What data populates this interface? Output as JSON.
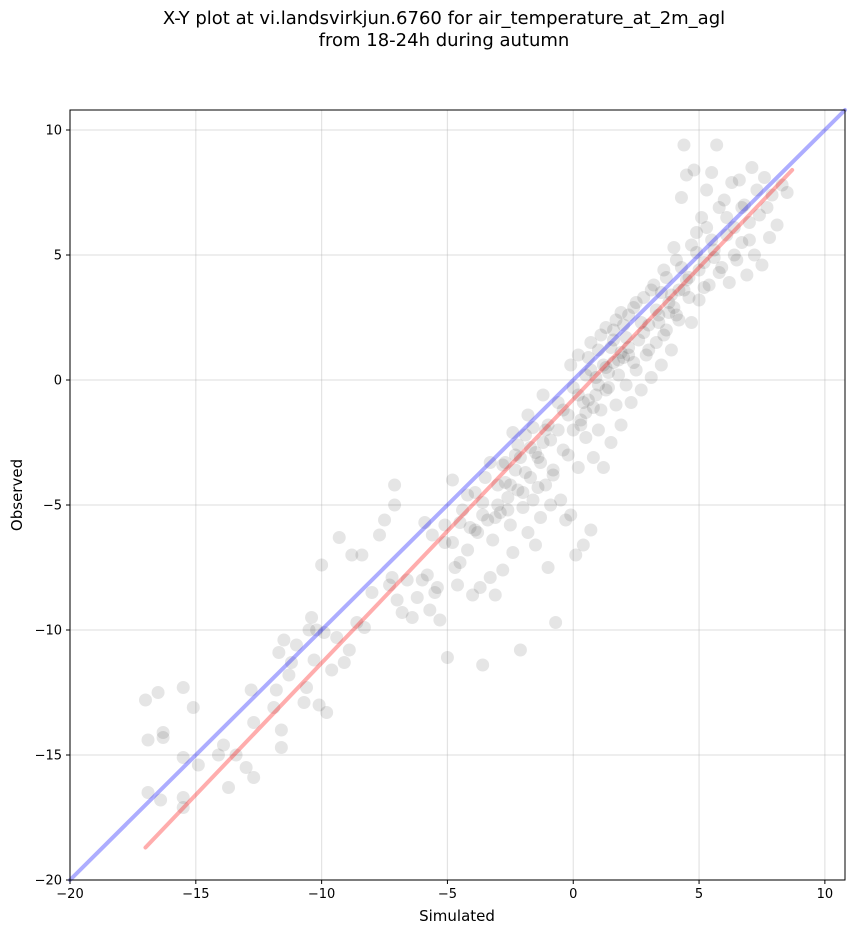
{
  "chart_data": {
    "type": "scatter",
    "title": "X-Y plot at vi.landsvirkjun.6760 for air_temperature_at_2m_agl",
    "subtitle": "from 18-24h during autumn",
    "xlabel": "Simulated",
    "ylabel": "Observed",
    "xlim": [
      -20,
      10.8
    ],
    "ylim": [
      -20,
      10.8
    ],
    "x_ticks": [
      -20,
      -15,
      -10,
      -5,
      0,
      5,
      10
    ],
    "y_ticks": [
      -20,
      -15,
      -10,
      -5,
      0,
      5,
      10
    ],
    "x_tick_labels": [
      "−20",
      "−15",
      "−10",
      "−5",
      "0",
      "5",
      "10"
    ],
    "y_tick_labels": [
      "−20",
      "−15",
      "−10",
      "−5",
      "0",
      "5",
      "10"
    ],
    "grid": true,
    "lines": [
      {
        "x": [
          -20,
          10.8
        ],
        "y": [
          -20,
          10.8
        ],
        "color": "#0000ff"
      },
      {
        "x": [
          -17,
          8.7
        ],
        "y": [
          -18.7,
          8.4
        ],
        "color": "#ff0000"
      }
    ],
    "point_color": "#000000",
    "points": [
      [
        -17.0,
        -12.8
      ],
      [
        -16.9,
        -14.4
      ],
      [
        -16.9,
        -16.5
      ],
      [
        -16.5,
        -12.5
      ],
      [
        -16.4,
        -16.8
      ],
      [
        -16.3,
        -14.3
      ],
      [
        -16.3,
        -14.1
      ],
      [
        -15.5,
        -12.3
      ],
      [
        -15.5,
        -15.1
      ],
      [
        -15.5,
        -16.7
      ],
      [
        -15.5,
        -17.1
      ],
      [
        -15.1,
        -13.1
      ],
      [
        -14.9,
        -15.4
      ],
      [
        -14.1,
        -15.0
      ],
      [
        -13.9,
        -14.6
      ],
      [
        -13.7,
        -16.3
      ],
      [
        -13.4,
        -15.0
      ],
      [
        -13.0,
        -15.5
      ],
      [
        -12.8,
        -12.4
      ],
      [
        -12.7,
        -13.7
      ],
      [
        -12.7,
        -15.9
      ],
      [
        -11.9,
        -13.1
      ],
      [
        -11.8,
        -12.4
      ],
      [
        -11.7,
        -10.9
      ],
      [
        -11.6,
        -14.7
      ],
      [
        -11.6,
        -14.0
      ],
      [
        -11.5,
        -10.4
      ],
      [
        -11.3,
        -11.8
      ],
      [
        -11.2,
        -11.3
      ],
      [
        -11.0,
        -10.6
      ],
      [
        -10.7,
        -12.9
      ],
      [
        -10.6,
        -12.3
      ],
      [
        -10.5,
        -10.0
      ],
      [
        -10.4,
        -9.5
      ],
      [
        -10.3,
        -11.2
      ],
      [
        -10.2,
        -10.0
      ],
      [
        -10.1,
        -13.0
      ],
      [
        -10.0,
        -7.4
      ],
      [
        -9.9,
        -10.1
      ],
      [
        -9.8,
        -13.3
      ],
      [
        -9.6,
        -11.6
      ],
      [
        -9.4,
        -10.3
      ],
      [
        -9.3,
        -6.3
      ],
      [
        -9.1,
        -11.3
      ],
      [
        -8.9,
        -10.8
      ],
      [
        -8.8,
        -7.0
      ],
      [
        -8.6,
        -9.7
      ],
      [
        -8.4,
        -7.0
      ],
      [
        -8.3,
        -9.9
      ],
      [
        -8.0,
        -8.5
      ],
      [
        -7.7,
        -6.2
      ],
      [
        -7.5,
        -5.6
      ],
      [
        -7.3,
        -8.2
      ],
      [
        -7.2,
        -7.9
      ],
      [
        -7.1,
        -5.0
      ],
      [
        -7.1,
        -4.2
      ],
      [
        -7.0,
        -8.8
      ],
      [
        -6.8,
        -9.3
      ],
      [
        -6.6,
        -8.0
      ],
      [
        -6.4,
        -9.5
      ],
      [
        -6.2,
        -8.7
      ],
      [
        -6.0,
        -8.0
      ],
      [
        -5.9,
        -5.7
      ],
      [
        -5.8,
        -7.8
      ],
      [
        -5.7,
        -9.2
      ],
      [
        -5.6,
        -6.2
      ],
      [
        -5.5,
        -8.5
      ],
      [
        -5.4,
        -8.3
      ],
      [
        -5.3,
        -9.6
      ],
      [
        -5.1,
        -6.5
      ],
      [
        -5.0,
        -11.1
      ],
      [
        -4.8,
        -6.5
      ],
      [
        -4.7,
        -7.5
      ],
      [
        -4.6,
        -8.2
      ],
      [
        -4.5,
        -7.3
      ],
      [
        -4.4,
        -5.2
      ],
      [
        -4.2,
        -6.8
      ],
      [
        -4.1,
        -5.9
      ],
      [
        -4.0,
        -8.6
      ],
      [
        -3.9,
        -4.5
      ],
      [
        -3.8,
        -6.1
      ],
      [
        -3.7,
        -8.3
      ],
      [
        -3.6,
        -11.4
      ],
      [
        -3.6,
        -4.9
      ],
      [
        -3.5,
        -3.9
      ],
      [
        -3.4,
        -5.6
      ],
      [
        -3.3,
        -7.9
      ],
      [
        -3.2,
        -6.4
      ],
      [
        -3.1,
        -8.6
      ],
      [
        -3.0,
        -4.2
      ],
      [
        -2.9,
        -5.3
      ],
      [
        -2.8,
        -7.6
      ],
      [
        -2.7,
        -3.3
      ],
      [
        -2.6,
        -4.7
      ],
      [
        -2.5,
        -5.8
      ],
      [
        -2.4,
        -6.9
      ],
      [
        -2.3,
        -3.6
      ],
      [
        -2.2,
        -4.4
      ],
      [
        -2.1,
        -10.8
      ],
      [
        -2.0,
        -5.1
      ],
      [
        -1.9,
        -2.2
      ],
      [
        -1.8,
        -6.1
      ],
      [
        -1.7,
        -3.9
      ],
      [
        -1.6,
        -4.8
      ],
      [
        -1.5,
        -6.6
      ],
      [
        -1.4,
        -3.1
      ],
      [
        -1.3,
        -5.5
      ],
      [
        -1.2,
        -2.5
      ],
      [
        -1.1,
        -4.2
      ],
      [
        -1.0,
        -7.5
      ],
      [
        -0.9,
        -5.0
      ],
      [
        -0.8,
        -3.8
      ],
      [
        -0.7,
        -9.7
      ],
      [
        -0.6,
        -2.0
      ],
      [
        -0.5,
        -4.8
      ],
      [
        -0.4,
        -1.2
      ],
      [
        -0.3,
        -5.6
      ],
      [
        -0.2,
        -3.0
      ],
      [
        -0.1,
        -5.4
      ],
      [
        0.0,
        -2.0
      ],
      [
        0.1,
        -7.0
      ],
      [
        0.2,
        -3.5
      ],
      [
        0.3,
        -1.6
      ],
      [
        0.4,
        -6.6
      ],
      [
        0.5,
        -2.3
      ],
      [
        0.6,
        -0.8
      ],
      [
        0.7,
        -6.0
      ],
      [
        0.8,
        -3.1
      ],
      [
        0.9,
        0.1
      ],
      [
        1.0,
        -2.0
      ],
      [
        1.1,
        -1.2
      ],
      [
        1.2,
        -3.5
      ],
      [
        1.3,
        0.5
      ],
      [
        1.4,
        -0.3
      ],
      [
        1.5,
        -2.5
      ],
      [
        1.6,
        1.6
      ],
      [
        1.7,
        -1.0
      ],
      [
        1.8,
        0.8
      ],
      [
        1.9,
        -1.8
      ],
      [
        2.0,
        2.2
      ],
      [
        2.1,
        -0.2
      ],
      [
        2.2,
        1.0
      ],
      [
        2.3,
        -0.9
      ],
      [
        2.4,
        2.9
      ],
      [
        2.5,
        0.4
      ],
      [
        2.6,
        1.6
      ],
      [
        2.7,
        -0.4
      ],
      [
        2.8,
        3.3
      ],
      [
        2.9,
        1.0
      ],
      [
        3.0,
        2.2
      ],
      [
        3.1,
        0.1
      ],
      [
        3.2,
        3.8
      ],
      [
        3.3,
        1.5
      ],
      [
        3.4,
        2.6
      ],
      [
        3.5,
        0.6
      ],
      [
        3.6,
        4.4
      ],
      [
        3.7,
        2.0
      ],
      [
        3.8,
        3.1
      ],
      [
        3.9,
        1.2
      ],
      [
        4.0,
        5.3
      ],
      [
        4.1,
        2.6
      ],
      [
        4.2,
        3.6
      ],
      [
        4.3,
        7.3
      ],
      [
        4.4,
        9.4
      ],
      [
        4.5,
        8.2
      ],
      [
        4.6,
        4.1
      ],
      [
        4.7,
        2.3
      ],
      [
        4.8,
        8.4
      ],
      [
        4.9,
        5.9
      ],
      [
        5.0,
        3.2
      ],
      [
        5.1,
        6.5
      ],
      [
        5.2,
        4.7
      ],
      [
        5.3,
        7.6
      ],
      [
        5.4,
        3.8
      ],
      [
        5.5,
        8.3
      ],
      [
        5.6,
        5.2
      ],
      [
        5.7,
        9.4
      ],
      [
        5.8,
        6.9
      ],
      [
        5.9,
        4.5
      ],
      [
        6.0,
        7.2
      ],
      [
        6.1,
        5.8
      ],
      [
        6.2,
        3.9
      ],
      [
        6.3,
        7.9
      ],
      [
        6.4,
        6.1
      ],
      [
        6.5,
        4.8
      ],
      [
        6.6,
        8.0
      ],
      [
        6.7,
        5.5
      ],
      [
        6.8,
        7.0
      ],
      [
        6.9,
        4.2
      ],
      [
        7.0,
        6.3
      ],
      [
        7.1,
        8.5
      ],
      [
        7.2,
        5.0
      ],
      [
        7.3,
        7.6
      ],
      [
        7.4,
        6.6
      ],
      [
        7.5,
        4.6
      ],
      [
        7.6,
        8.1
      ],
      [
        7.7,
        6.9
      ],
      [
        7.8,
        5.7
      ],
      [
        7.9,
        7.4
      ],
      [
        8.1,
        6.2
      ],
      [
        8.3,
        7.8
      ],
      [
        8.5,
        7.5
      ],
      [
        -0.2,
        -1.4
      ],
      [
        0.2,
        -0.6
      ],
      [
        0.5,
        0.2
      ],
      [
        0.8,
        -1.1
      ],
      [
        1.2,
        0.6
      ],
      [
        1.5,
        1.3
      ],
      [
        1.8,
        0.2
      ],
      [
        2.1,
        1.7
      ],
      [
        2.4,
        0.7
      ],
      [
        2.7,
        2.3
      ],
      [
        3.0,
        1.2
      ],
      [
        3.3,
        2.8
      ],
      [
        3.6,
        1.8
      ],
      [
        3.9,
        3.4
      ],
      [
        4.2,
        2.4
      ],
      [
        4.5,
        4.0
      ],
      [
        0.0,
        -0.3
      ],
      [
        0.3,
        -1.8
      ],
      [
        0.6,
        0.9
      ],
      [
        0.9,
        -0.6
      ],
      [
        1.1,
        1.8
      ],
      [
        1.4,
        0.3
      ],
      [
        1.7,
        2.4
      ],
      [
        2.0,
        0.9
      ],
      [
        -0.6,
        -0.9
      ],
      [
        -0.9,
        -2.4
      ],
      [
        -1.2,
        -0.6
      ],
      [
        -1.5,
        -2.9
      ],
      [
        -1.8,
        -1.4
      ],
      [
        -2.1,
        -3.1
      ],
      [
        -2.4,
        -2.1
      ],
      [
        -2.7,
        -4.1
      ],
      [
        -0.4,
        -2.8
      ],
      [
        -0.8,
        -3.6
      ],
      [
        -1.1,
        -2.0
      ],
      [
        -1.4,
        -4.3
      ],
      [
        -1.7,
        -2.7
      ],
      [
        -2.0,
        -4.5
      ],
      [
        -2.3,
        -3.0
      ],
      [
        -2.6,
        -5.2
      ],
      [
        -3.0,
        -5.0
      ],
      [
        -3.3,
        -3.3
      ],
      [
        -3.6,
        -5.4
      ],
      [
        -3.9,
        -6.0
      ],
      [
        -4.2,
        -4.6
      ],
      [
        -4.5,
        -5.7
      ],
      [
        -4.8,
        -4.0
      ],
      [
        -5.1,
        -5.8
      ],
      [
        0.2,
        1.0
      ],
      [
        0.5,
        -1.3
      ],
      [
        0.7,
        1.5
      ],
      [
        1.0,
        -0.2
      ],
      [
        1.3,
        2.1
      ],
      [
        1.6,
        0.7
      ],
      [
        1.9,
        2.7
      ],
      [
        2.2,
        1.3
      ],
      [
        2.5,
        3.1
      ],
      [
        2.8,
        1.9
      ],
      [
        3.1,
        3.6
      ],
      [
        3.4,
        2.3
      ],
      [
        3.7,
        4.1
      ],
      [
        4.0,
        2.9
      ],
      [
        4.3,
        4.5
      ],
      [
        4.6,
        3.3
      ],
      [
        4.9,
        5.1
      ],
      [
        5.2,
        3.7
      ],
      [
        5.5,
        5.6
      ],
      [
        5.8,
        4.3
      ],
      [
        6.1,
        6.5
      ],
      [
        6.4,
        5.0
      ],
      [
        6.7,
        6.9
      ],
      [
        7.0,
        5.6
      ],
      [
        -0.1,
        0.6
      ],
      [
        0.4,
        -0.9
      ],
      [
        0.7,
        0.4
      ],
      [
        1.0,
        1.2
      ],
      [
        1.3,
        -0.4
      ],
      [
        1.6,
        2.0
      ],
      [
        1.9,
        1.1
      ],
      [
        2.2,
        2.6
      ],
      [
        3.5,
        3.5
      ],
      [
        3.8,
        2.7
      ],
      [
        4.1,
        4.8
      ],
      [
        4.4,
        3.6
      ],
      [
        4.7,
        5.4
      ],
      [
        5.0,
        4.4
      ],
      [
        5.3,
        6.1
      ],
      [
        5.6,
        4.9
      ],
      [
        -1.0,
        -1.8
      ],
      [
        -1.3,
        -3.3
      ],
      [
        -1.6,
        -1.9
      ],
      [
        -1.9,
        -3.7
      ],
      [
        -2.2,
        -2.6
      ],
      [
        -2.5,
        -4.2
      ],
      [
        -2.8,
        -3.4
      ],
      [
        -3.1,
        -5.5
      ]
    ]
  }
}
